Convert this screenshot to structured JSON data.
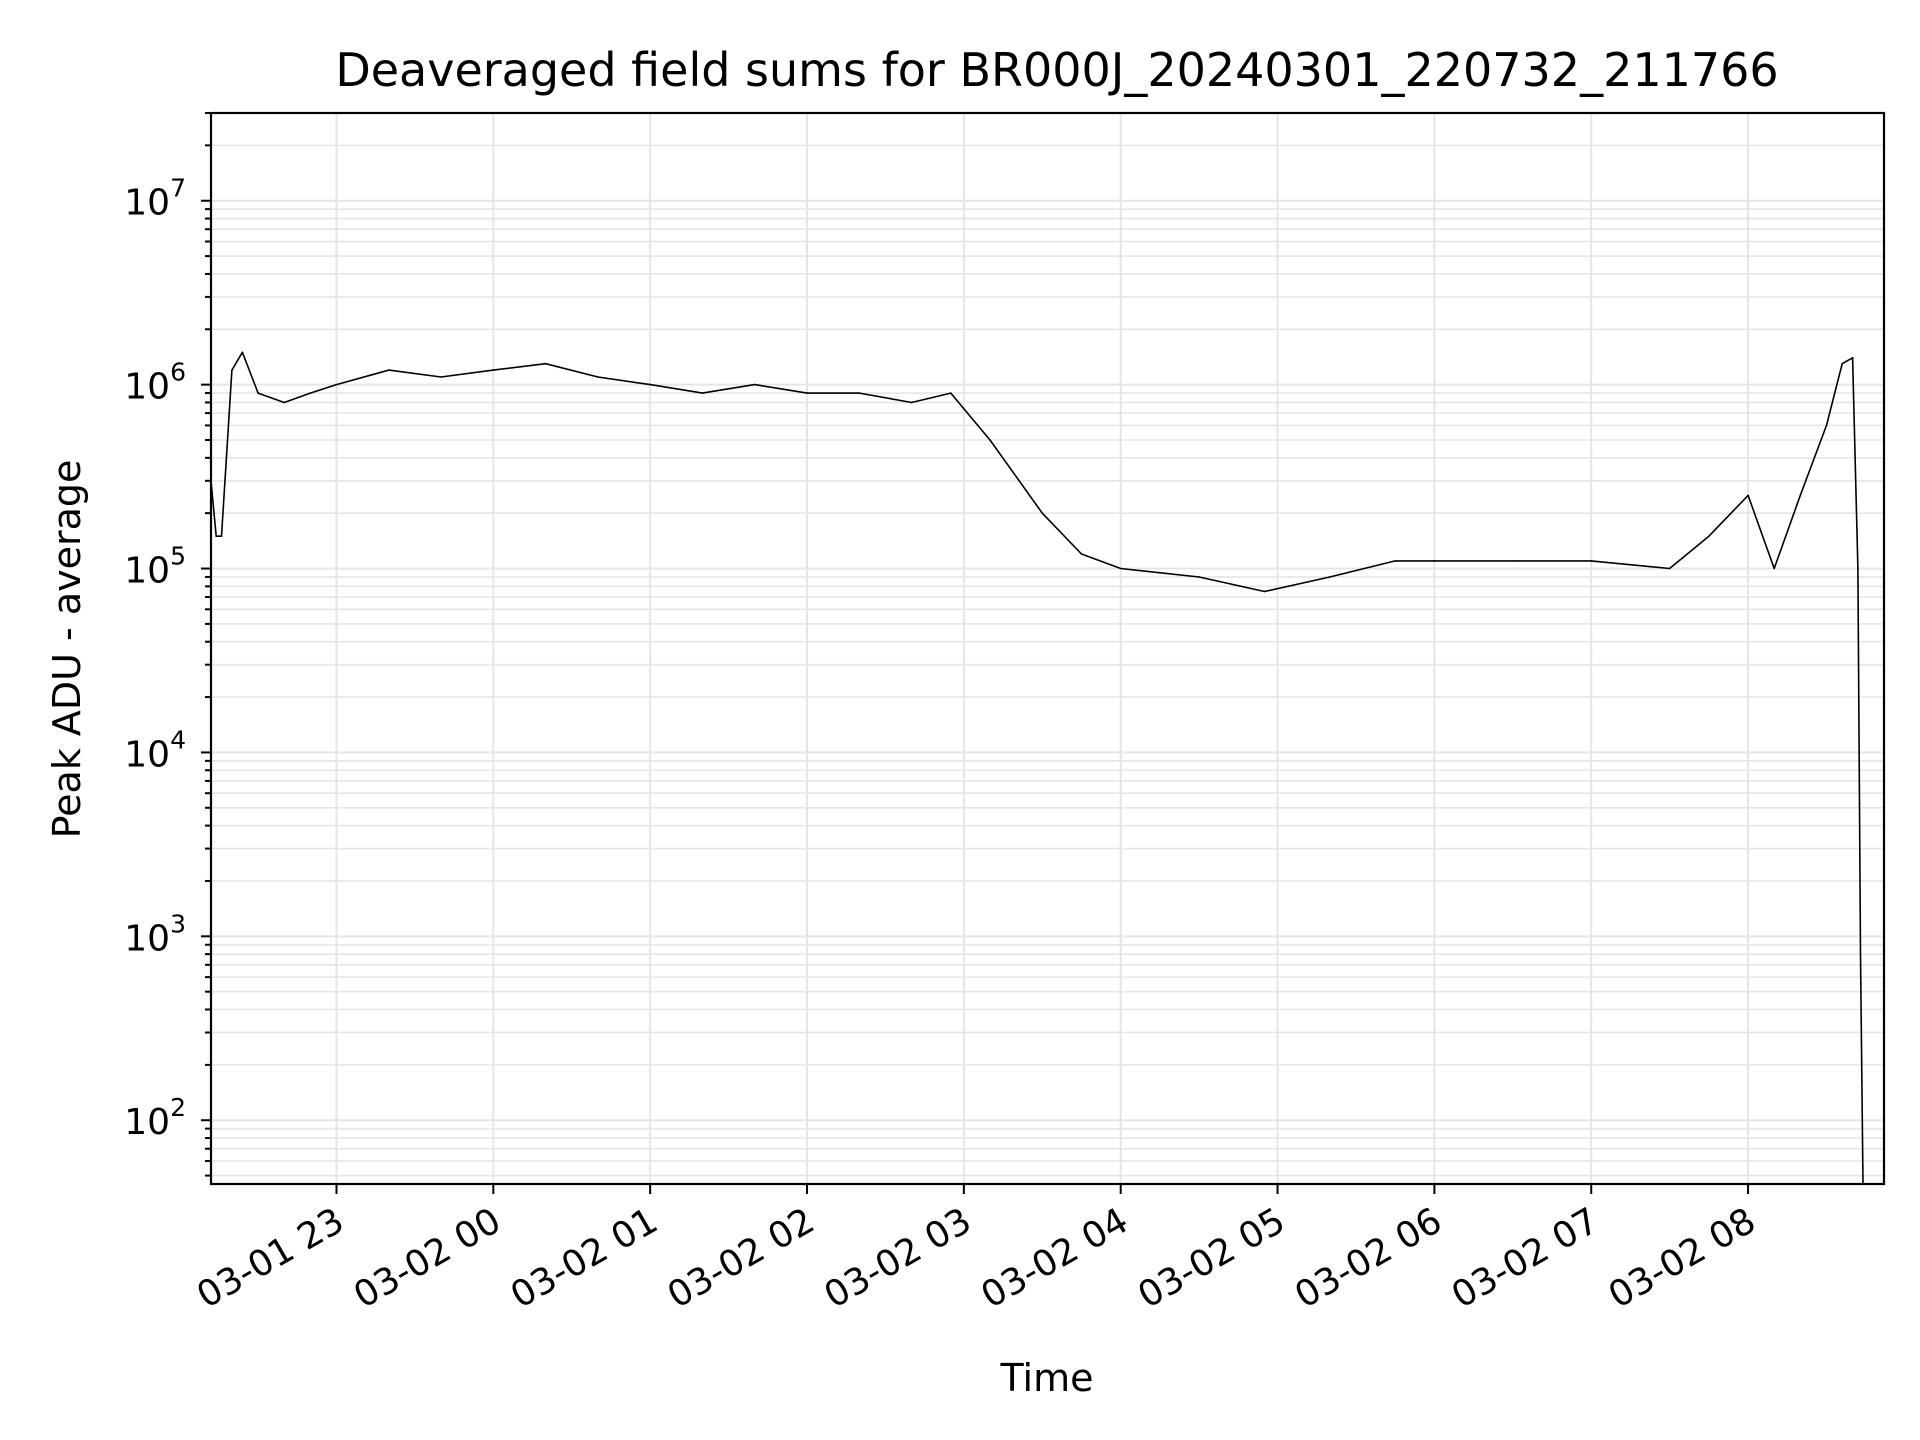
{
  "chart_data": {
    "type": "line",
    "title": "Deaveraged field sums for BR000J_20240301_220732_211766",
    "xlabel": "Time",
    "ylabel": "Peak ADU - average",
    "xscale": "time",
    "yscale": "log",
    "xlim": [
      "2024-03-01 22:12",
      "2024-03-02 08:52"
    ],
    "ylim": [
      45,
      30000000
    ],
    "grid": true,
    "x_ticks": [
      "03-01 23",
      "03-02 00",
      "03-02 01",
      "03-02 02",
      "03-02 03",
      "03-02 04",
      "03-02 05",
      "03-02 06",
      "03-02 07",
      "03-02 08"
    ],
    "y_ticks": [
      {
        "base": "10",
        "exp": "2"
      },
      {
        "base": "10",
        "exp": "3"
      },
      {
        "base": "10",
        "exp": "4"
      },
      {
        "base": "10",
        "exp": "5"
      },
      {
        "base": "10",
        "exp": "6"
      },
      {
        "base": "10",
        "exp": "7"
      }
    ],
    "line_color": "#000000",
    "grid_color": "#e5e5e5",
    "series": [
      {
        "x": [
          "2024-03-01 22:12",
          "2024-03-01 22:14",
          "2024-03-01 22:16",
          "2024-03-01 22:20",
          "2024-03-01 22:24",
          "2024-03-01 22:30",
          "2024-03-01 22:40",
          "2024-03-01 22:50",
          "2024-03-01 23:00",
          "2024-03-01 23:20",
          "2024-03-01 23:40",
          "2024-03-02 00:00",
          "2024-03-02 00:20",
          "2024-03-02 00:40",
          "2024-03-02 01:00",
          "2024-03-02 01:20",
          "2024-03-02 01:40",
          "2024-03-02 02:00",
          "2024-03-02 02:20",
          "2024-03-02 02:40",
          "2024-03-02 02:55",
          "2024-03-02 03:10",
          "2024-03-02 03:30",
          "2024-03-02 03:45",
          "2024-03-02 04:00",
          "2024-03-02 04:30",
          "2024-03-02 04:55",
          "2024-03-02 05:20",
          "2024-03-02 05:45",
          "2024-03-02 06:00",
          "2024-03-02 06:30",
          "2024-03-02 07:00",
          "2024-03-02 07:30",
          "2024-03-02 07:45",
          "2024-03-02 08:00",
          "2024-03-02 08:10",
          "2024-03-02 08:20",
          "2024-03-02 08:30",
          "2024-03-02 08:36",
          "2024-03-02 08:40",
          "2024-03-02 08:42",
          "2024-03-02 08:43",
          "2024-03-02 08:44"
        ],
        "y": [
          300000,
          150000,
          150000,
          1200000,
          1500000,
          900000,
          800000,
          900000,
          1000000,
          1200000,
          1100000,
          1200000,
          1300000,
          1100000,
          1000000,
          900000,
          1000000,
          900000,
          900000,
          800000,
          900000,
          500000,
          200000,
          120000,
          100000,
          90000,
          75000,
          90000,
          110000,
          110000,
          110000,
          110000,
          100000,
          150000,
          250000,
          100000,
          250000,
          600000,
          1300000,
          1400000,
          100000,
          800,
          40
        ]
      }
    ]
  }
}
